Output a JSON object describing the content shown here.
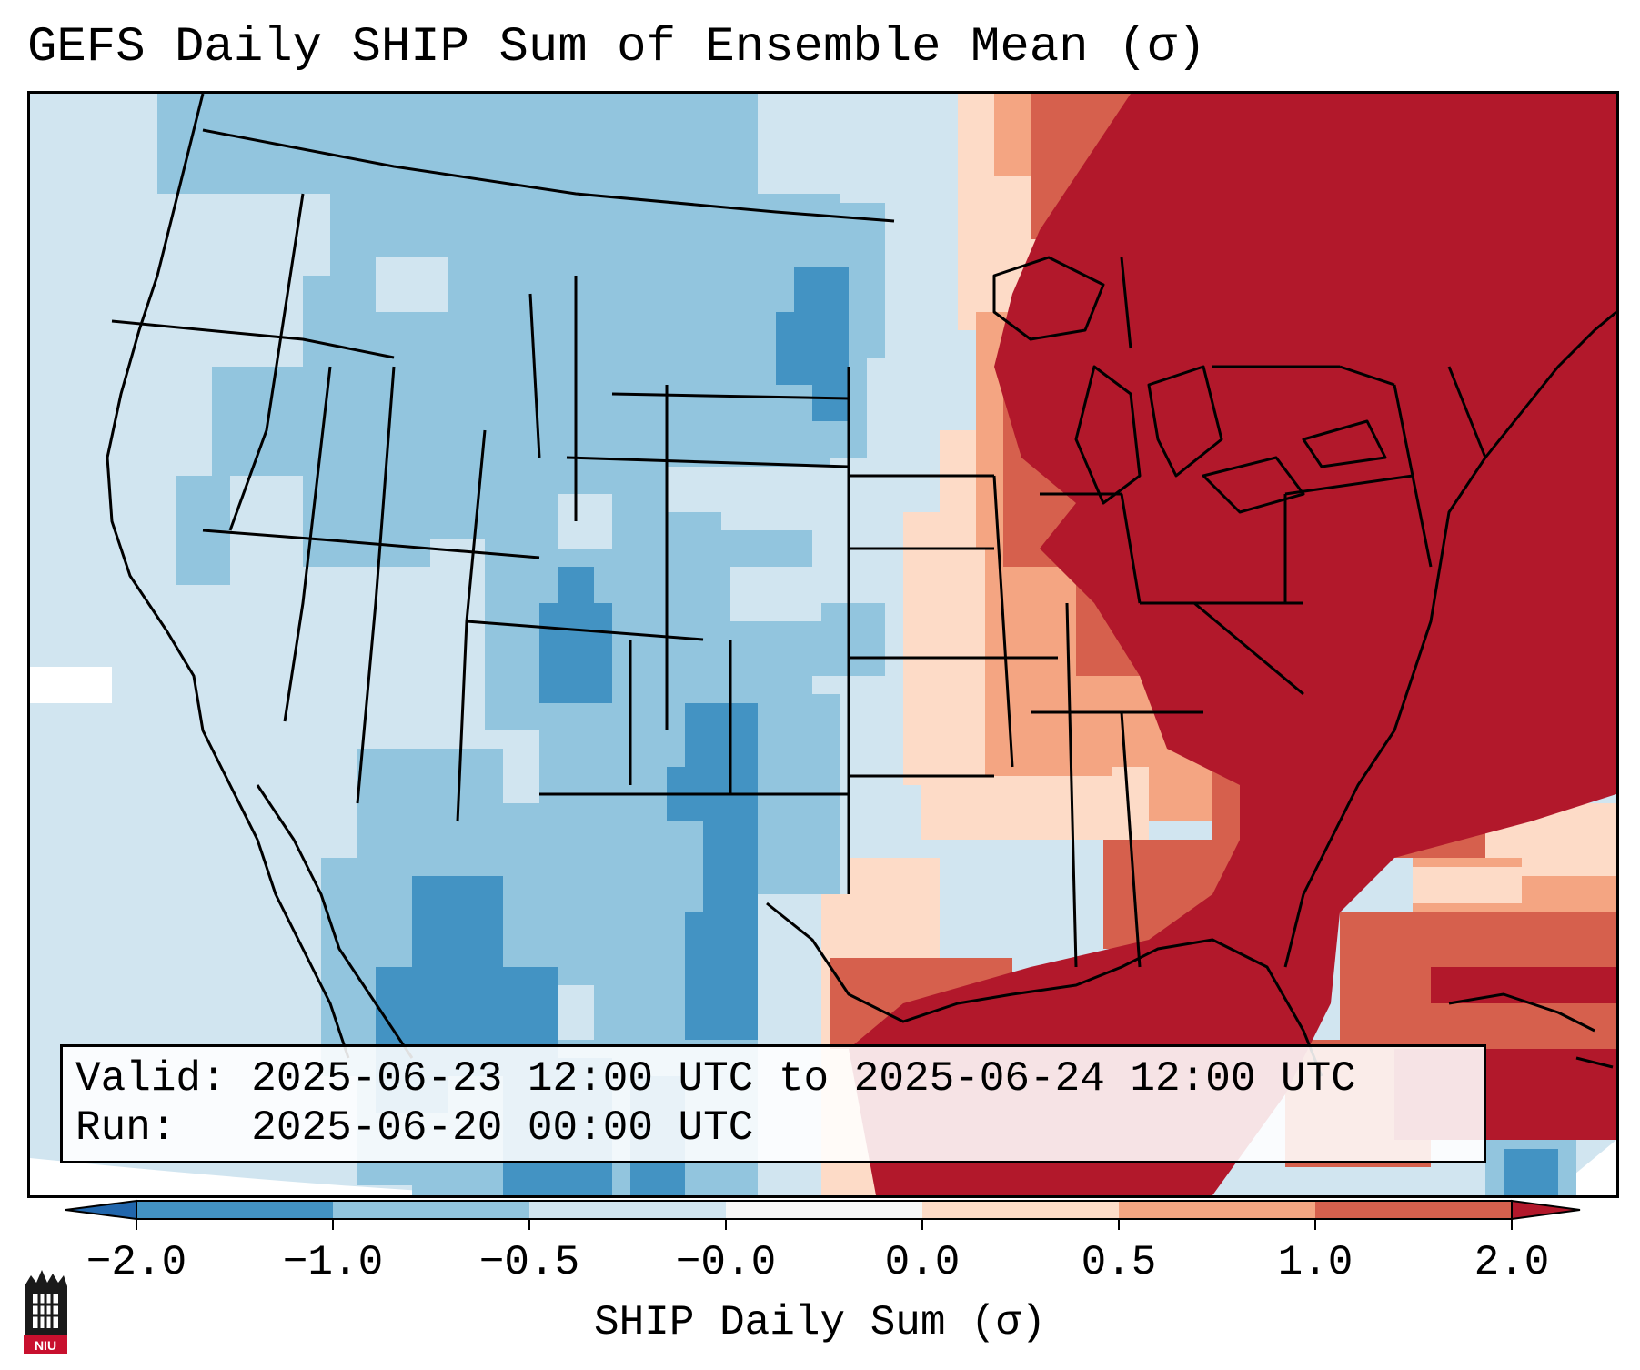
{
  "title": "GEFS Daily SHIP Sum of Ensemble Mean (σ)",
  "info": {
    "valid_label": "Valid:",
    "valid_value": "2025-06-23 12:00 UTC to 2025-06-24 12:00 UTC",
    "run_label": "Run:",
    "run_value": "2025-06-20 00:00 UTC"
  },
  "colorbar": {
    "title": "SHIP Daily Sum (σ)",
    "tick_labels": [
      "−2.0",
      "−1.0",
      "−0.5",
      "−0.0",
      "0.0",
      "0.5",
      "1.0",
      "2.0"
    ],
    "bin_colors": [
      "#2166ac",
      "#4393c3",
      "#92c5de",
      "#d1e5f0",
      "#f7f7f7",
      "#fddbc7",
      "#f4a582",
      "#d6604d",
      "#b2182b"
    ]
  },
  "logo": {
    "label": "NIU",
    "icon": "niu-logo-icon"
  }
}
